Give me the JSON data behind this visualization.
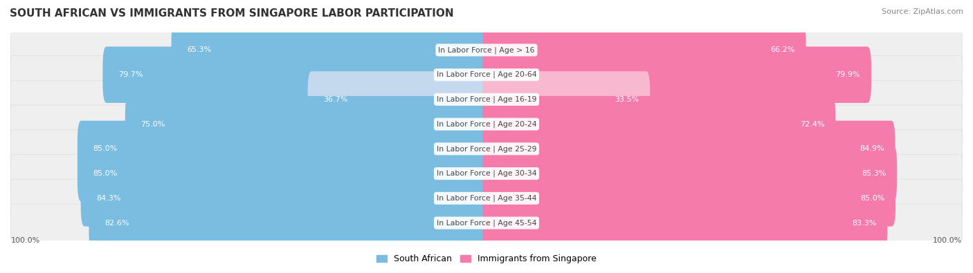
{
  "title": "SOUTH AFRICAN VS IMMIGRANTS FROM SINGAPORE LABOR PARTICIPATION",
  "source": "Source: ZipAtlas.com",
  "categories": [
    "In Labor Force | Age > 16",
    "In Labor Force | Age 20-64",
    "In Labor Force | Age 16-19",
    "In Labor Force | Age 20-24",
    "In Labor Force | Age 25-29",
    "In Labor Force | Age 30-34",
    "In Labor Force | Age 35-44",
    "In Labor Force | Age 45-54"
  ],
  "south_african": [
    65.3,
    79.7,
    36.7,
    75.0,
    85.0,
    85.0,
    84.3,
    82.6
  ],
  "immigrants": [
    66.2,
    79.9,
    33.5,
    72.4,
    84.9,
    85.3,
    85.0,
    83.3
  ],
  "sa_colors": [
    "#7bbde0",
    "#7bbde0",
    "#c5d9ee",
    "#7bbde0",
    "#7bbde0",
    "#7bbde0",
    "#7bbde0",
    "#7bbde0"
  ],
  "imm_colors": [
    "#f47baa",
    "#f47baa",
    "#f8b8cf",
    "#f47baa",
    "#f47baa",
    "#f47baa",
    "#f47baa",
    "#f47baa"
  ],
  "sa_label": "South African",
  "imm_label": "Immigrants from Singapore",
  "sa_legend_color": "#7bbde0",
  "imm_legend_color": "#f47baa",
  "max_val": 100.0,
  "bar_height": 0.68,
  "row_bg": "#efefef",
  "row_bg_light": "#f7f7f7",
  "label_white": "#ffffff",
  "label_dark": "#555555",
  "center_label_color": "#444444",
  "bg_color": "#ffffff",
  "title_color": "#333333",
  "source_color": "#888888",
  "title_fontsize": 11,
  "bar_label_fontsize": 8,
  "cat_label_fontsize": 7.8
}
